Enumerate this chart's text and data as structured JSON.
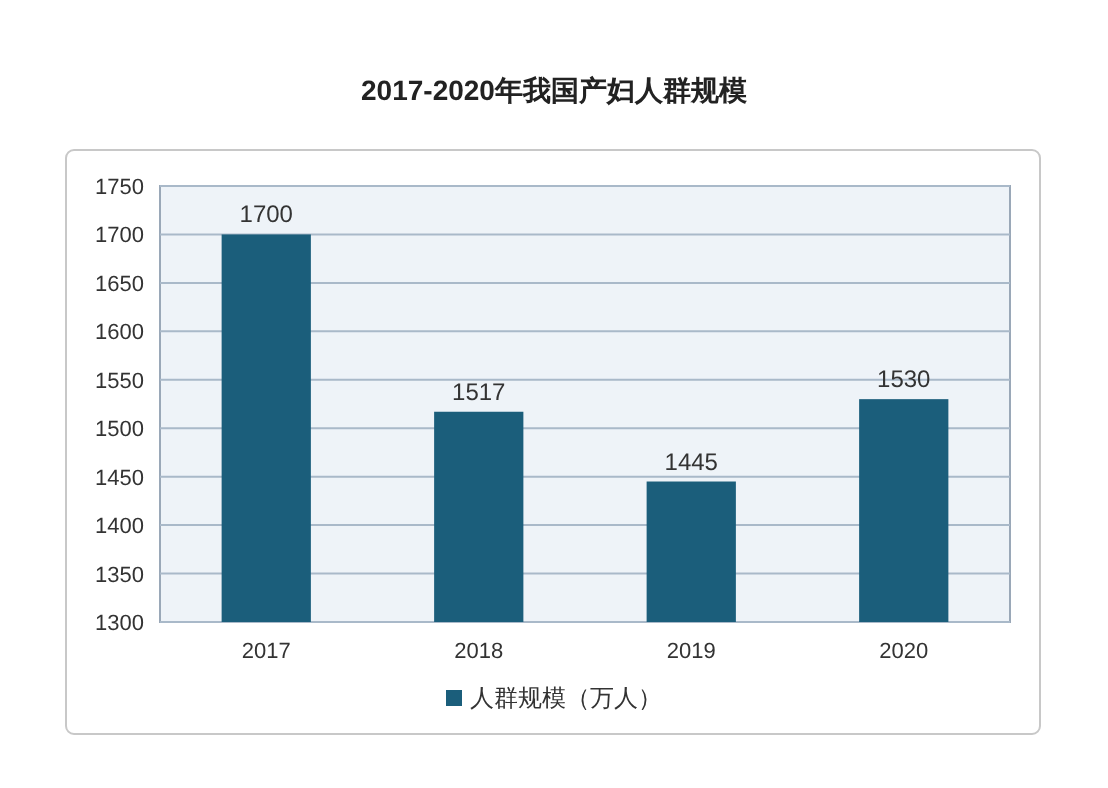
{
  "chart_data": {
    "type": "bar",
    "title": "2017-2020年我国产妇人群规模",
    "categories": [
      "2017",
      "2018",
      "2019",
      "2020"
    ],
    "series": [
      {
        "name": "人群规模（万人）",
        "color": "#1b5e7b",
        "values": [
          1700,
          1517,
          1445,
          1530
        ]
      }
    ],
    "ylim": [
      1300,
      1750
    ],
    "yticks": [
      1300,
      1350,
      1400,
      1450,
      1500,
      1550,
      1600,
      1650,
      1700,
      1750
    ],
    "grid": "y",
    "data_labels": true,
    "legend": "bottom"
  }
}
